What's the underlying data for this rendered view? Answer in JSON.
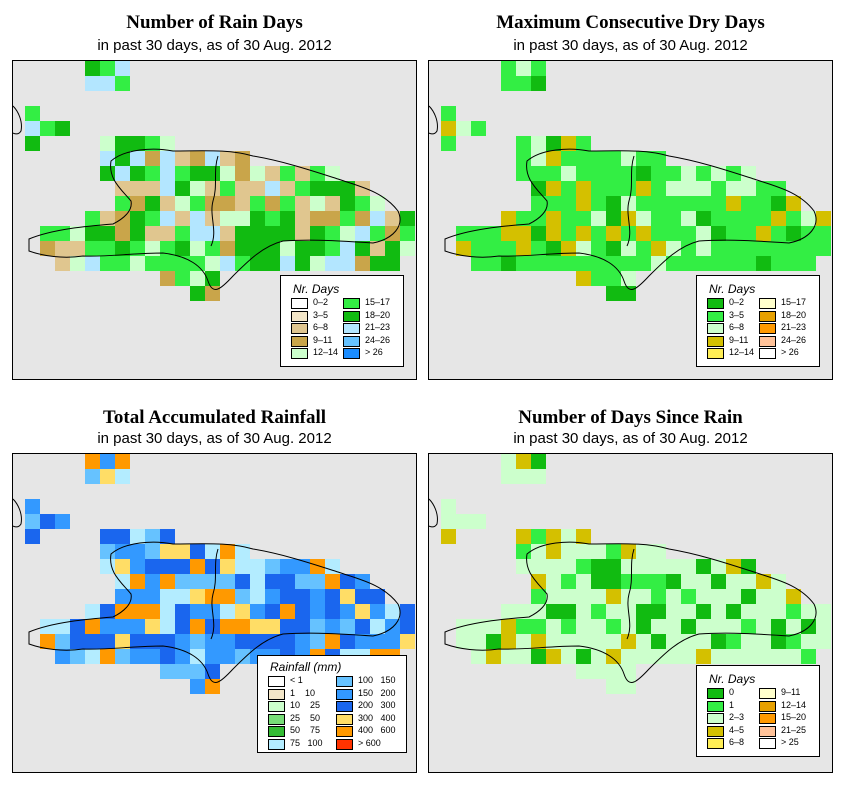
{
  "panels": [
    {
      "title": "Number of Rain Days",
      "subtitle": "in past 30 days, as of  30 Aug. 2012",
      "legend": {
        "title": "Nr. Days",
        "items": [
          {
            "label": "0–2",
            "color": "#ffffff"
          },
          {
            "label": "3–5",
            "color": "#f3e6c8"
          },
          {
            "label": "6–8",
            "color": "#e0c68f"
          },
          {
            "label": "9–11",
            "color": "#c9a54a"
          },
          {
            "label": "12–14",
            "color": "#ccffcc"
          },
          {
            "label": "15–17",
            "color": "#33ee44"
          },
          {
            "label": "18–20",
            "color": "#11bb11"
          },
          {
            "label": "21–23",
            "color": "#b3e6ff"
          },
          {
            "label": "24–26",
            "color": "#66c2ff"
          },
          {
            "label": "> 26",
            "color": "#1a8cff"
          }
        ]
      }
    },
    {
      "title": "Maximum Consecutive Dry Days",
      "subtitle": "in past 30 days, as of  30 Aug. 2012",
      "legend": {
        "title": "Nr. Days",
        "items": [
          {
            "label": "0–2",
            "color": "#11bb11"
          },
          {
            "label": "3–5",
            "color": "#33ee44"
          },
          {
            "label": "6–8",
            "color": "#ccffcc"
          },
          {
            "label": "9–11",
            "color": "#d4c000"
          },
          {
            "label": "12–14",
            "color": "#ffee55"
          },
          {
            "label": "15–17",
            "color": "#ffffcc"
          },
          {
            "label": "18–20",
            "color": "#e6a000"
          },
          {
            "label": "21–23",
            "color": "#ff9900"
          },
          {
            "label": "24–26",
            "color": "#ffc299"
          },
          {
            "label": "> 26",
            "color": "#ffffff"
          }
        ]
      }
    },
    {
      "title": "Total Accumulated Rainfall",
      "subtitle": "in past 30 days, as of  30 Aug. 2012",
      "legend": {
        "title": "Rainfall (mm)",
        "items": [
          {
            "label": "< 1",
            "color": "#ffffff"
          },
          {
            "label": "1    10",
            "color": "#f3e6c8"
          },
          {
            "label": "10    25",
            "color": "#ccffcc"
          },
          {
            "label": "25    50",
            "color": "#77dd77"
          },
          {
            "label": "50    75",
            "color": "#33bb33"
          },
          {
            "label": "75   100",
            "color": "#b3ecff"
          },
          {
            "label": "100   150",
            "color": "#66c2ff"
          },
          {
            "label": "150   200",
            "color": "#3399ff"
          },
          {
            "label": "200   300",
            "color": "#1a66ee"
          },
          {
            "label": "300   400",
            "color": "#ffdd66"
          },
          {
            "label": "400   600",
            "color": "#ff9900"
          },
          {
            "label": "> 600",
            "color": "#ff3300"
          }
        ]
      }
    },
    {
      "title": "Number of Days Since Rain",
      "subtitle": "in past 30 days, as of  30 Aug. 2012",
      "legend": {
        "title": "Nr. Days",
        "items": [
          {
            "label": "0",
            "color": "#11bb11"
          },
          {
            "label": "1",
            "color": "#33ee44"
          },
          {
            "label": "2–3",
            "color": "#ccffcc"
          },
          {
            "label": "4–5",
            "color": "#d4c000"
          },
          {
            "label": "6–8",
            "color": "#ffee55"
          },
          {
            "label": "9–11",
            "color": "#ffffcc"
          },
          {
            "label": "12–14",
            "color": "#e6a000"
          },
          {
            "label": "15–20",
            "color": "#ff9900"
          },
          {
            "label": "21–25",
            "color": "#ffc299"
          },
          {
            "label": "> 25",
            "color": "#ffffff"
          }
        ]
      }
    }
  ]
}
